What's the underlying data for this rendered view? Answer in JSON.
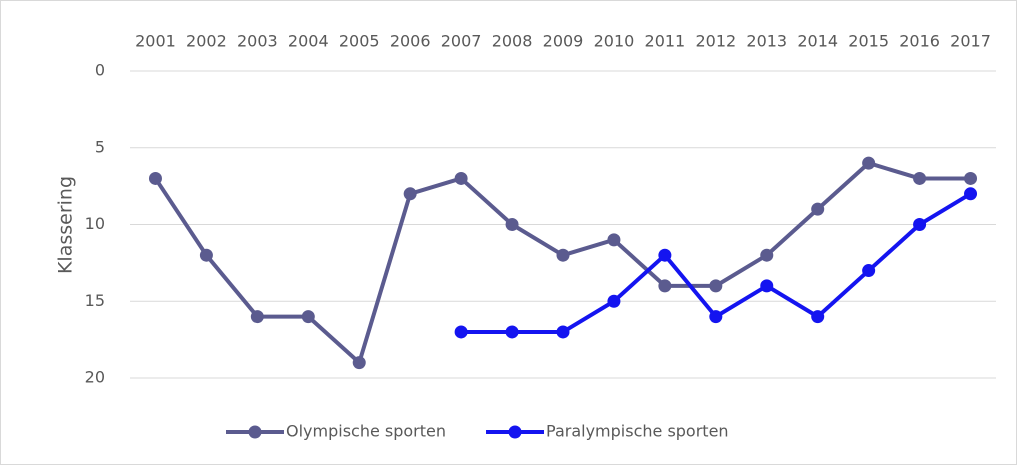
{
  "chart_data": {
    "type": "line",
    "categories": [
      "2001",
      "2002",
      "2003",
      "2004",
      "2005",
      "2006",
      "2007",
      "2008",
      "2009",
      "2010",
      "2011",
      "2012",
      "2013",
      "2014",
      "2015",
      "2016",
      "2017"
    ],
    "series": [
      {
        "name": "Olympische sporten",
        "color": "#5b5b8f",
        "values": [
          7,
          12,
          16,
          16,
          19,
          8,
          7,
          10,
          12,
          11,
          14,
          14,
          12,
          9,
          6,
          7,
          7
        ]
      },
      {
        "name": "Paralympische sporten",
        "color": "#1414f0",
        "values": [
          null,
          null,
          null,
          null,
          null,
          null,
          17,
          17,
          17,
          15,
          12,
          16,
          14,
          16,
          13,
          10,
          8
        ]
      }
    ],
    "y_label": "Klassering",
    "ylim": [
      20,
      0
    ],
    "yticks": [
      0,
      5,
      10,
      15,
      20
    ],
    "grid": true,
    "legend": "bottom"
  }
}
